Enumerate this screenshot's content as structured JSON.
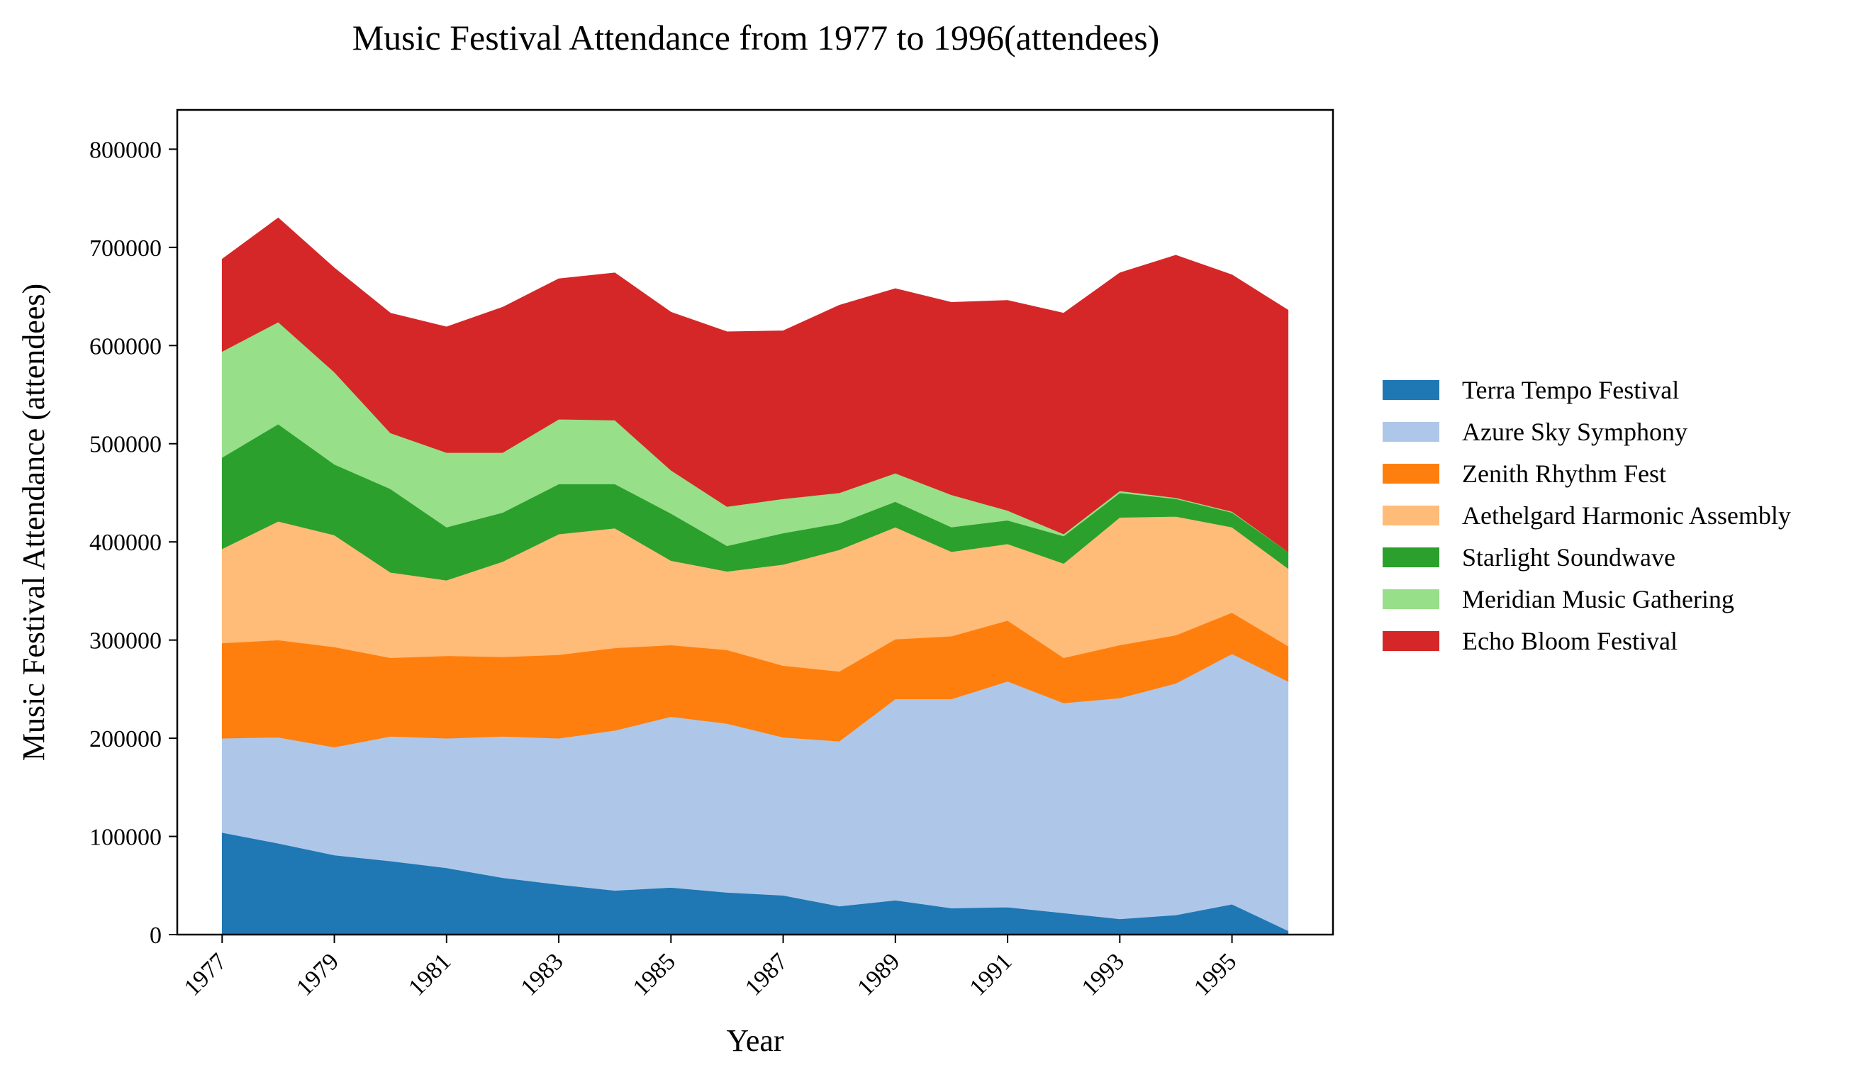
{
  "chart_data": {
    "type": "area",
    "stacked": true,
    "title": "Music Festival Attendance from 1977 to 1996(attendees)",
    "xlabel": "Year",
    "ylabel": "Music Festival Attendance (attendees)",
    "x": [
      1977,
      1978,
      1979,
      1980,
      1981,
      1982,
      1983,
      1984,
      1985,
      1986,
      1987,
      1988,
      1989,
      1990,
      1991,
      1992,
      1993,
      1994,
      1995,
      1996
    ],
    "xticks": [
      "1977",
      "1979",
      "1981",
      "1983",
      "1985",
      "1987",
      "1989",
      "1991",
      "1993",
      "1995"
    ],
    "yticks": [
      "0",
      "100000",
      "200000",
      "300000",
      "400000",
      "500000",
      "600000",
      "700000",
      "800000"
    ],
    "ylim": [
      0,
      840000
    ],
    "xlim": [
      1976.2,
      1996.8
    ],
    "grid": false,
    "legend_position": "right",
    "series": [
      {
        "name": "Terra Tempo Festival",
        "color": "#1f77b4",
        "values": [
          104000,
          93000,
          81000,
          75000,
          68000,
          58000,
          51000,
          45000,
          48000,
          43000,
          40000,
          29000,
          35000,
          27000,
          28000,
          22000,
          16000,
          20000,
          31000,
          4000
        ]
      },
      {
        "name": "Azure Sky Symphony",
        "color": "#aec7e8",
        "values": [
          96000,
          108000,
          110000,
          127000,
          132000,
          144000,
          149000,
          163000,
          174000,
          172000,
          161000,
          168000,
          205000,
          213000,
          230000,
          214000,
          225000,
          236000,
          255000,
          254000
        ]
      },
      {
        "name": "Zenith Rhythm Fest",
        "color": "#ff7f0e",
        "values": [
          97000,
          99000,
          102000,
          80000,
          84000,
          81000,
          85000,
          84000,
          73000,
          75000,
          73000,
          71000,
          61000,
          64000,
          62000,
          46000,
          54000,
          49000,
          42000,
          36000
        ]
      },
      {
        "name": "Aethelgard Harmonic Assembly",
        "color": "#ffbb78",
        "values": [
          96000,
          121000,
          114000,
          87000,
          77000,
          97000,
          123000,
          122000,
          86000,
          80000,
          103000,
          124000,
          114000,
          86000,
          78000,
          96000,
          130000,
          121000,
          87000,
          79000
        ]
      },
      {
        "name": "Starlight Soundwave",
        "color": "#2ca02c",
        "values": [
          93000,
          99000,
          72000,
          85000,
          54000,
          50000,
          51000,
          45000,
          48000,
          26000,
          32000,
          27000,
          26000,
          25000,
          24000,
          28000,
          25000,
          18000,
          15000,
          17000
        ]
      },
      {
        "name": "Meridian Music Gathering",
        "color": "#98df8a",
        "values": [
          108000,
          104000,
          94000,
          57000,
          76000,
          61000,
          66000,
          65000,
          44000,
          40000,
          35000,
          31000,
          29000,
          33000,
          10000,
          2000,
          2000,
          1000,
          1000,
          0
        ]
      },
      {
        "name": "Echo Bloom Festival",
        "color": "#d62728",
        "values": [
          94000,
          106000,
          106000,
          122000,
          128000,
          148000,
          143000,
          150000,
          161000,
          178000,
          171000,
          191000,
          188000,
          196000,
          214000,
          225000,
          222000,
          247000,
          241000,
          246000
        ]
      }
    ]
  }
}
